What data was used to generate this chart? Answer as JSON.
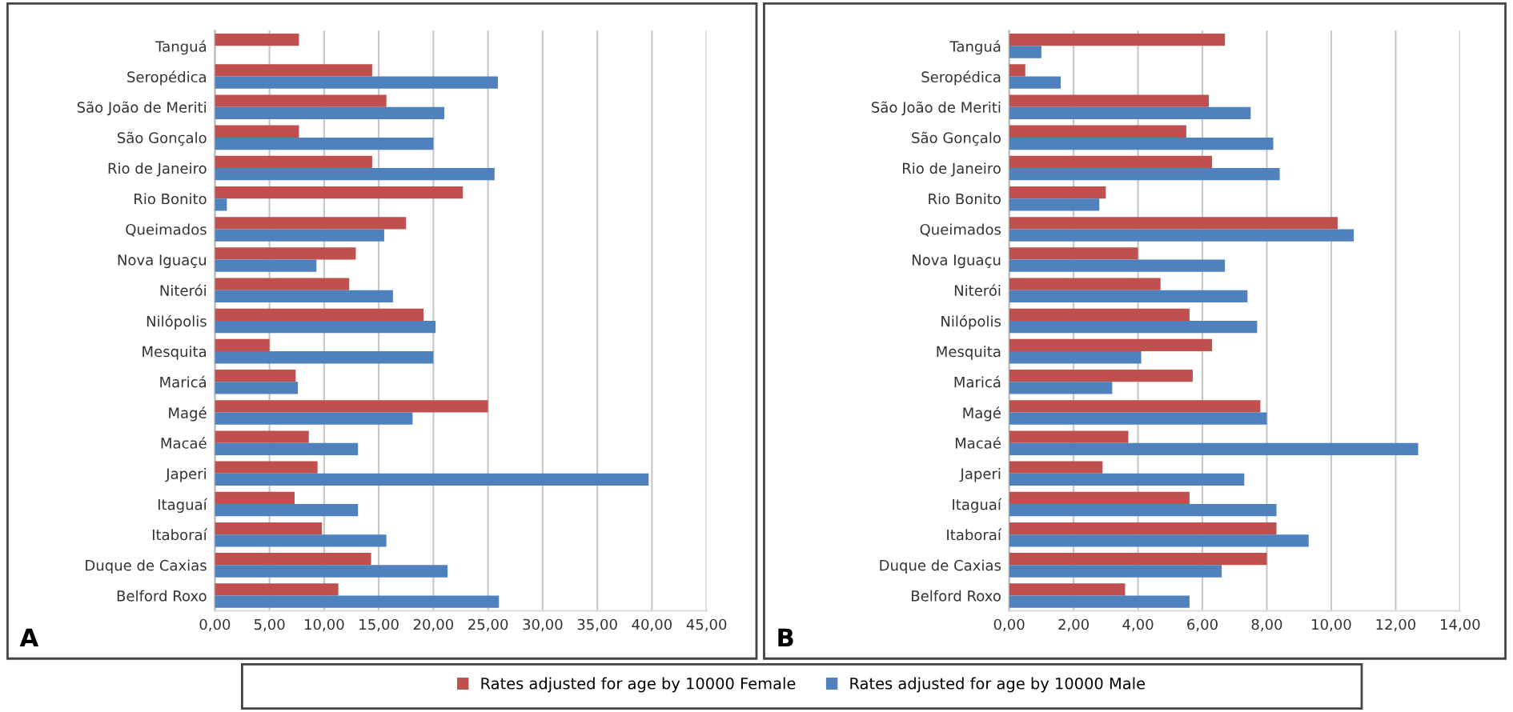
{
  "chart_data": [
    {
      "type": "bar",
      "orientation": "horizontal",
      "categories": [
        "Tanguá",
        "Seropédica",
        "São João de Meriti",
        "São Gonçalo",
        "Rio de Janeiro",
        "Rio Bonito",
        "Queimados",
        "Nova Iguaçu",
        "Niterói",
        "Nilópolis",
        "Mesquita",
        "Maricá",
        "Magé",
        "Macaé",
        "Japeri",
        "Itaguaí",
        "Itaboraí",
        "Duque de Caxias",
        "Belford Roxo"
      ],
      "series": [
        {
          "name": "Rates adjusted for age by 10000 Female",
          "color": "#c0504d",
          "values": [
            7.7,
            14.4,
            15.7,
            7.7,
            14.4,
            22.7,
            17.5,
            12.9,
            12.3,
            19.1,
            5.0,
            7.4,
            25.0,
            8.6,
            9.4,
            7.3,
            9.8,
            14.3,
            11.3
          ]
        },
        {
          "name": "Rates adjusted for age by 10000 Male",
          "color": "#4f81bd",
          "values": [
            null,
            25.9,
            21.0,
            20.0,
            25.6,
            1.1,
            15.5,
            9.3,
            16.3,
            20.2,
            20.0,
            7.6,
            18.1,
            13.1,
            39.7,
            13.1,
            15.7,
            21.3,
            26.0
          ]
        }
      ],
      "xlim": [
        0,
        45
      ],
      "xticks": [
        {
          "value": 0,
          "label": "0,00"
        },
        {
          "value": 5,
          "label": "5,00"
        },
        {
          "value": 10,
          "label": "10,00"
        },
        {
          "value": 15,
          "label": "15,00"
        },
        {
          "value": 20,
          "label": "20,00"
        },
        {
          "value": 25,
          "label": "25,00"
        },
        {
          "value": 30,
          "label": "30,00"
        },
        {
          "value": 35,
          "label": "35,00"
        },
        {
          "value": 40,
          "label": "40,00"
        },
        {
          "value": 45,
          "label": "45,00"
        }
      ],
      "grid": "x",
      "legend": "bottom",
      "annotations": [
        "A"
      ]
    },
    {
      "type": "bar",
      "orientation": "horizontal",
      "categories": [
        "Tanguá",
        "Seropédica",
        "São João de Meriti",
        "São Gonçalo",
        "Rio de Janeiro",
        "Rio Bonito",
        "Queimados",
        "Nova Iguaçu",
        "Niterói",
        "Nilópolis",
        "Mesquita",
        "Maricá",
        "Magé",
        "Macaé",
        "Japeri",
        "Itaguaí",
        "Itaboraí",
        "Duque de Caxias",
        "Belford Roxo"
      ],
      "series": [
        {
          "color": "#c0504d",
          "values": [
            6.7,
            0.5,
            6.2,
            5.5,
            6.3,
            3.0,
            10.2,
            4.0,
            4.7,
            5.6,
            6.3,
            5.7,
            7.8,
            3.7,
            2.9,
            5.6,
            8.3,
            8.0,
            3.6
          ]
        },
        {
          "color": "#4f81bd",
          "values": [
            1.0,
            1.6,
            7.5,
            8.2,
            8.4,
            2.8,
            10.7,
            6.7,
            7.4,
            7.7,
            4.1,
            3.2,
            8.0,
            12.7,
            7.3,
            8.3,
            9.3,
            6.6,
            5.6
          ]
        }
      ],
      "xlim": [
        0,
        14
      ],
      "xticks": [
        {
          "value": 0,
          "label": "0,00"
        },
        {
          "value": 2,
          "label": "2,00"
        },
        {
          "value": 4,
          "label": "4,00"
        },
        {
          "value": 6,
          "label": "6,00"
        },
        {
          "value": 8,
          "label": "8,00"
        },
        {
          "value": 10,
          "label": "10,00"
        },
        {
          "value": 12,
          "label": "12,00"
        },
        {
          "value": 14,
          "label": "14,00"
        }
      ],
      "grid": "x",
      "annotations": [
        "B"
      ]
    }
  ]
}
